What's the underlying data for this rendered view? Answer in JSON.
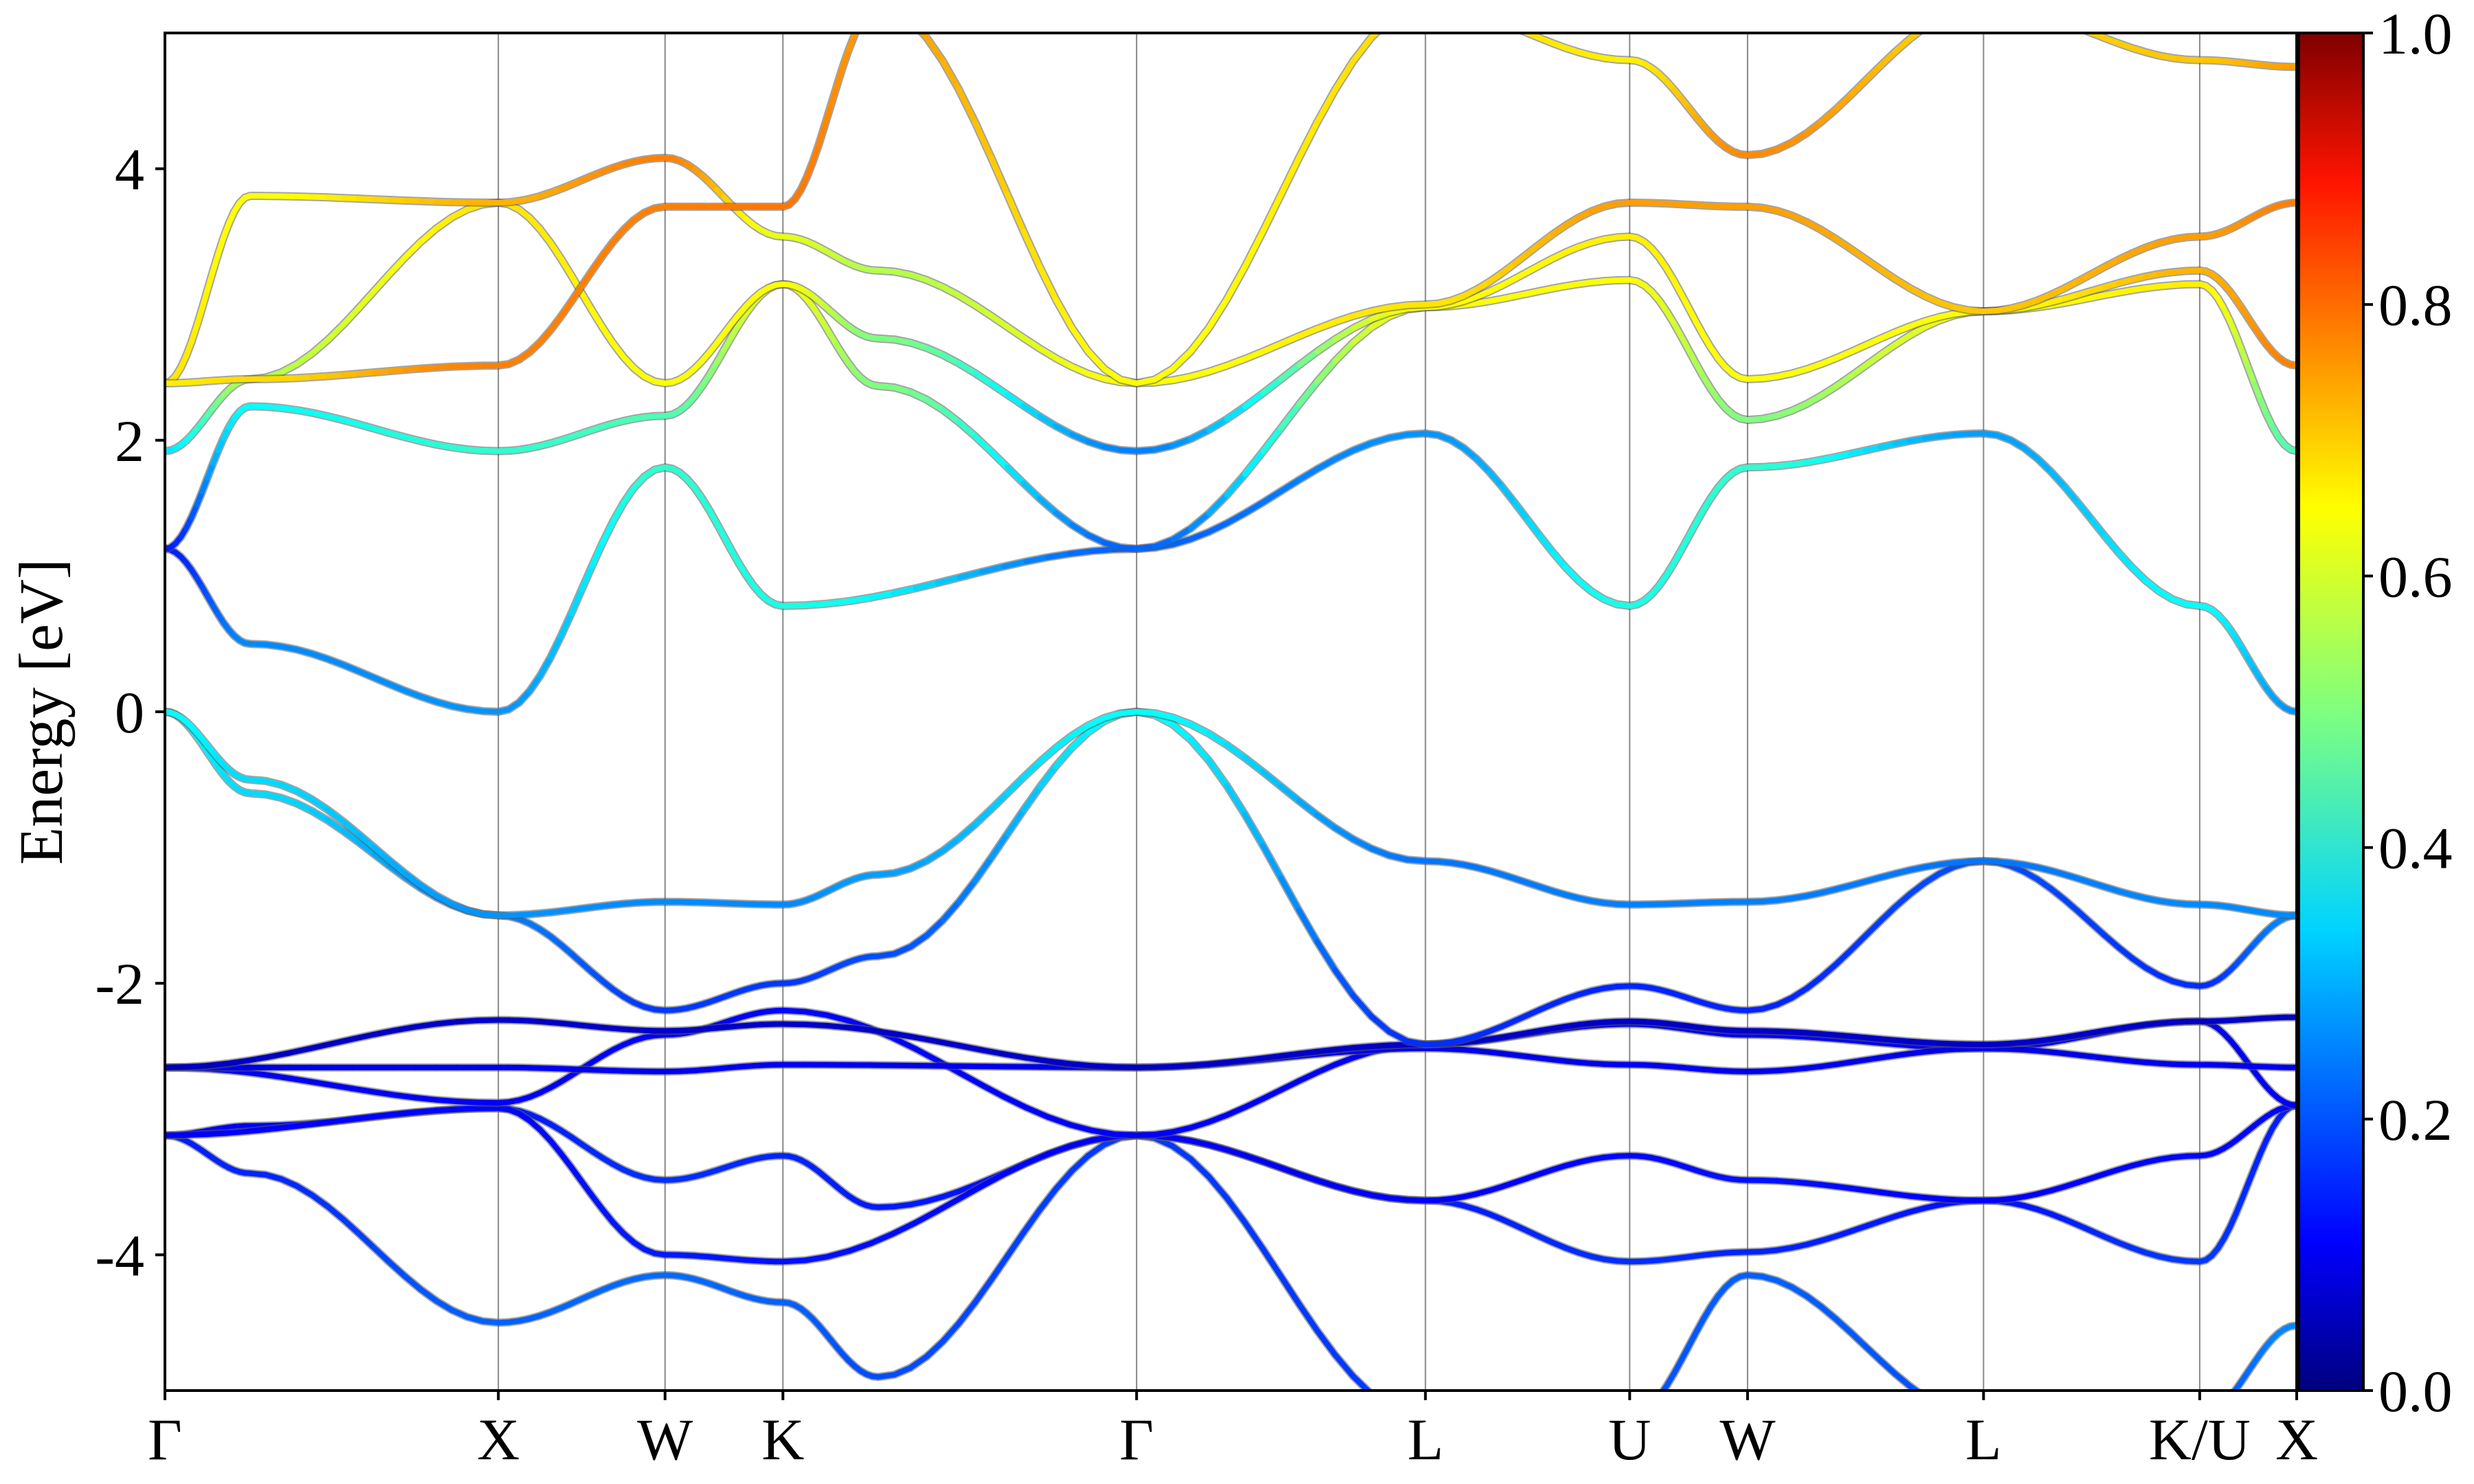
{
  "chart_data": {
    "type": "line",
    "title": "",
    "xlabel": "",
    "ylabel": "Energy [eV]",
    "ylim": [
      -5,
      5
    ],
    "y_ticks": [
      -4,
      -2,
      0,
      2,
      4
    ],
    "y_tick_labels": [
      "-4",
      "-2",
      "0",
      "2",
      "4"
    ],
    "k_labels": [
      "Γ",
      "X",
      "W",
      "K",
      "Γ",
      "L",
      "U",
      "W",
      "L",
      "K/U",
      "X"
    ],
    "k_positions": [
      0.0,
      0.1564,
      0.2346,
      0.2899,
      0.4558,
      0.5913,
      0.6871,
      0.7424,
      0.8531,
      0.9545,
      1.0
    ],
    "xlim": [
      0,
      1
    ],
    "colorbar": {
      "colormap": "jet",
      "range": [
        0.0,
        1.0
      ],
      "ticks": [
        0.0,
        0.2,
        0.4,
        0.6,
        0.8,
        1.0
      ],
      "tick_labels": [
        "0.0",
        "0.2",
        "0.4",
        "0.6",
        "0.8",
        "1.0"
      ]
    },
    "series": [
      {
        "x": [
          0,
          0.04,
          0.1564,
          0.2346,
          0.2899,
          0.3346,
          0.4558,
          0.5913,
          0.6871,
          0.7424,
          0.8531,
          0.9545,
          1.0
        ],
        "y": [
          -3.12,
          -3.4,
          -4.5,
          -4.15,
          -4.35,
          -4.9,
          -3.12,
          -5.2,
          -5.2,
          -4.15,
          -5.2,
          -5.2,
          -4.52
        ],
        "w": [
          0.15,
          0.16,
          0.22,
          0.23,
          0.22,
          0.2,
          0.18,
          0.18,
          0.2,
          0.22,
          0.2,
          0.2,
          0.26
        ]
      },
      {
        "x": [
          0,
          0.04,
          0.1564,
          0.2346,
          0.2899,
          0.3346,
          0.4558,
          0.5913,
          0.6871,
          0.7424,
          0.8531,
          0.9545,
          1.0
        ],
        "y": [
          -3.12,
          -3.05,
          -2.92,
          -3.45,
          -3.27,
          -3.65,
          -3.12,
          -3.6,
          -4.05,
          -3.98,
          -3.6,
          -4.05,
          -2.9
        ],
        "w": [
          0.1,
          0.12,
          0.15,
          0.17,
          0.16,
          0.15,
          0.12,
          0.15,
          0.17,
          0.16,
          0.14,
          0.18,
          0.15
        ]
      },
      {
        "x": [
          0,
          0.1564,
          0.2346,
          0.2899,
          0.4558,
          0.5913,
          0.6871,
          0.7424,
          0.8531,
          0.9545,
          1.0
        ],
        "y": [
          -3.12,
          -2.92,
          -4.0,
          -4.05,
          -3.12,
          -3.6,
          -3.27,
          -3.45,
          -3.6,
          -3.27,
          -2.9
        ],
        "w": [
          0.12,
          0.13,
          0.15,
          0.14,
          0.12,
          0.12,
          0.13,
          0.14,
          0.12,
          0.13,
          0.13
        ]
      },
      {
        "x": [
          0,
          0.1564,
          0.2346,
          0.2899,
          0.4558,
          0.5913,
          0.6871,
          0.7424,
          0.8531,
          0.9545,
          1.0
        ],
        "y": [
          -2.62,
          -2.88,
          -2.38,
          -2.2,
          -3.12,
          -2.45,
          -2.3,
          -2.38,
          -2.48,
          -2.28,
          -2.9
        ],
        "w": [
          0.11,
          0.12,
          0.12,
          0.13,
          0.12,
          0.11,
          0.1,
          0.11,
          0.11,
          0.11,
          0.12
        ]
      },
      {
        "x": [
          0,
          0.1564,
          0.2346,
          0.2899,
          0.4558,
          0.5913,
          0.6871,
          0.7424,
          0.8531,
          0.9545,
          1.0
        ],
        "y": [
          -2.62,
          -2.62,
          -2.65,
          -2.6,
          -2.62,
          -2.48,
          -2.6,
          -2.65,
          -2.48,
          -2.6,
          -2.62
        ],
        "w": [
          0.1,
          0.11,
          0.11,
          0.11,
          0.1,
          0.1,
          0.11,
          0.11,
          0.1,
          0.11,
          0.11
        ]
      },
      {
        "x": [
          0,
          0.1564,
          0.2346,
          0.2899,
          0.4558,
          0.5913,
          0.6871,
          0.7424,
          0.8531,
          0.9545,
          1.0
        ],
        "y": [
          -2.62,
          -2.27,
          -2.35,
          -2.3,
          -2.62,
          -2.45,
          -2.28,
          -2.35,
          -2.45,
          -2.28,
          -2.25
        ],
        "w": [
          0.06,
          0.07,
          0.07,
          0.07,
          0.07,
          0.07,
          0.07,
          0.07,
          0.07,
          0.07,
          0.07
        ]
      },
      {
        "x": [
          0,
          0.04,
          0.1564,
          0.2346,
          0.2899,
          0.3346,
          0.4558,
          0.5913,
          0.6871,
          0.7424,
          0.8531,
          0.9545,
          1.0
        ],
        "y": [
          0.0,
          -0.6,
          -1.5,
          -2.2,
          -2.0,
          -1.8,
          0.0,
          -2.45,
          -2.02,
          -2.2,
          -1.1,
          -2.02,
          -1.5
        ],
        "w": [
          0.38,
          0.34,
          0.25,
          0.18,
          0.18,
          0.2,
          0.38,
          0.17,
          0.16,
          0.16,
          0.2,
          0.17,
          0.26
        ]
      },
      {
        "x": [
          0,
          0.04,
          0.1564,
          0.2346,
          0.2899,
          0.3346,
          0.4558,
          0.5913,
          0.6871,
          0.7424,
          0.8531,
          0.9545,
          1.0
        ],
        "y": [
          0.0,
          -0.5,
          -1.5,
          -1.4,
          -1.42,
          -1.2,
          0.0,
          -1.1,
          -1.42,
          -1.4,
          -1.1,
          -1.42,
          -1.5
        ],
        "w": [
          0.38,
          0.34,
          0.27,
          0.26,
          0.26,
          0.28,
          0.38,
          0.24,
          0.25,
          0.25,
          0.24,
          0.26,
          0.26
        ]
      },
      {
        "x": [
          0,
          0.04,
          0.1564,
          0.2346,
          0.2899,
          0.4558,
          0.5913,
          0.6871,
          0.7424,
          0.8531,
          0.9545,
          1.0
        ],
        "y": [
          1.2,
          0.5,
          0.0,
          1.8,
          0.78,
          1.2,
          2.05,
          0.78,
          1.8,
          2.05,
          0.78,
          0.0
        ],
        "w": [
          0.15,
          0.26,
          0.27,
          0.42,
          0.4,
          0.22,
          0.27,
          0.4,
          0.42,
          0.28,
          0.38,
          0.27
        ]
      },
      {
        "x": [
          0,
          0.04,
          0.1564,
          0.2346,
          0.2899,
          0.3346,
          0.4558,
          0.5913,
          0.6871,
          0.7424,
          0.8531,
          0.9545,
          1.0
        ],
        "y": [
          1.2,
          2.25,
          1.92,
          2.18,
          3.15,
          2.4,
          1.2,
          2.98,
          3.18,
          2.15,
          2.95,
          3.15,
          1.92
        ],
        "w": [
          0.15,
          0.38,
          0.42,
          0.45,
          0.62,
          0.5,
          0.22,
          0.62,
          0.62,
          0.5,
          0.62,
          0.64,
          0.45
        ]
      },
      {
        "x": [
          0,
          0.04,
          0.1564,
          0.2346,
          0.2899,
          0.3346,
          0.4558,
          0.5913,
          0.6871,
          0.7424,
          0.8531,
          0.9545,
          1.0
        ],
        "y": [
          1.92,
          2.45,
          3.75,
          2.42,
          3.15,
          2.75,
          1.92,
          2.98,
          3.5,
          2.45,
          2.95,
          3.25,
          2.55
        ],
        "w": [
          0.35,
          0.55,
          0.65,
          0.62,
          0.62,
          0.5,
          0.25,
          0.62,
          0.64,
          0.62,
          0.62,
          0.7,
          0.75
        ]
      },
      {
        "x": [
          0,
          0.04,
          0.1564,
          0.2346,
          0.2899,
          0.3346,
          0.4558,
          0.5913,
          0.6871,
          0.7424,
          0.8531,
          0.9545,
          1.0
        ],
        "y": [
          2.42,
          3.8,
          3.75,
          4.08,
          3.5,
          3.25,
          2.42,
          3.0,
          3.75,
          3.72,
          2.95,
          3.5,
          3.75
        ],
        "w": [
          0.65,
          0.62,
          0.7,
          0.75,
          0.6,
          0.55,
          0.62,
          0.65,
          0.72,
          0.72,
          0.68,
          0.72,
          0.75
        ]
      },
      {
        "x": [
          0,
          0.04,
          0.1564,
          0.2346,
          0.2899,
          0.3346,
          0.4558,
          0.5913,
          0.6871,
          0.7424,
          0.8531,
          0.9545,
          1.0
        ],
        "y": [
          2.42,
          2.45,
          2.55,
          3.72,
          3.72,
          5.2,
          2.42,
          5.2,
          4.8,
          4.1,
          5.2,
          4.8,
          4.75
        ],
        "w": [
          0.64,
          0.66,
          0.75,
          0.75,
          0.76,
          0.72,
          0.62,
          0.66,
          0.64,
          0.74,
          0.66,
          0.68,
          0.72
        ]
      }
    ]
  }
}
